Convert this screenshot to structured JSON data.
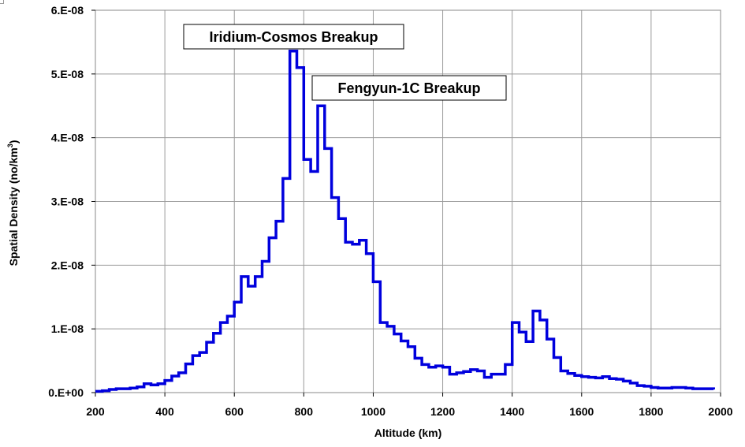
{
  "chart_data": {
    "type": "line",
    "step": true,
    "title": "",
    "xlabel": "Altitude (km)",
    "ylabel": {
      "prefix": "Spatial Density (no/km",
      "superscript": "3",
      "suffix": ")"
    },
    "xlim": [
      200,
      2000
    ],
    "ylim": [
      0,
      6e-08
    ],
    "xticks": [
      200,
      400,
      600,
      800,
      1000,
      1200,
      1400,
      1600,
      1800,
      2000
    ],
    "xtick_labels": [
      "200",
      "400",
      "600",
      "800",
      "1000",
      "1200",
      "1400",
      "1600",
      "1800",
      "2000"
    ],
    "yticks": [
      0,
      1e-08,
      2e-08,
      3e-08,
      4e-08,
      5e-08,
      6e-08
    ],
    "ytick_labels": [
      "0.E+00",
      "1.E-08",
      "2.E-08",
      "3.E-08",
      "4.E-08",
      "5.E-08",
      "6.E-08"
    ],
    "grid": true,
    "legend": "none",
    "series": [
      {
        "color": "#0000dd",
        "x": [
          200,
          220,
          240,
          260,
          280,
          300,
          320,
          340,
          360,
          380,
          400,
          420,
          440,
          460,
          480,
          500,
          520,
          540,
          560,
          580,
          600,
          620,
          640,
          660,
          680,
          700,
          720,
          740,
          760,
          780,
          800,
          820,
          840,
          860,
          880,
          900,
          920,
          940,
          960,
          980,
          1000,
          1020,
          1040,
          1060,
          1080,
          1100,
          1120,
          1140,
          1160,
          1180,
          1200,
          1220,
          1240,
          1260,
          1280,
          1300,
          1320,
          1340,
          1360,
          1380,
          1400,
          1420,
          1440,
          1460,
          1480,
          1500,
          1520,
          1540,
          1560,
          1580,
          1600,
          1620,
          1640,
          1660,
          1680,
          1700,
          1720,
          1740,
          1760,
          1780,
          1800,
          1820,
          1840,
          1860,
          1880,
          1900,
          1920,
          1940,
          1960,
          1980
        ],
        "y": [
          2e-10,
          3e-10,
          5e-10,
          6e-10,
          6e-10,
          7e-10,
          9e-10,
          1.4e-09,
          1.2e-09,
          1.4e-09,
          1.9e-09,
          2.6e-09,
          3.1e-09,
          4.5e-09,
          5.8e-09,
          6.3e-09,
          7.9e-09,
          9.3e-09,
          1.1e-08,
          1.2e-08,
          1.42e-08,
          1.82e-08,
          1.67e-08,
          1.82e-08,
          2.06e-08,
          2.43e-08,
          2.69e-08,
          3.36e-08,
          5.36e-08,
          5.1e-08,
          3.66e-08,
          3.47e-08,
          4.5e-08,
          3.83e-08,
          3.06e-08,
          2.73e-08,
          2.36e-08,
          2.33e-08,
          2.39e-08,
          2.18e-08,
          1.74e-08,
          1.1e-08,
          1.04e-08,
          9.2e-09,
          8.1e-09,
          7.2e-09,
          5.4e-09,
          4.4e-09,
          4e-09,
          4.2e-09,
          4e-09,
          2.9e-09,
          3.1e-09,
          3.3e-09,
          3.6e-09,
          3.4e-09,
          2.4e-09,
          2.9e-09,
          2.9e-09,
          4.4e-09,
          1.1e-08,
          9.5e-09,
          8e-09,
          1.28e-08,
          1.14e-08,
          8.4e-09,
          5.5e-09,
          3.4e-09,
          3e-09,
          2.7e-09,
          2.5e-09,
          2.4e-09,
          2.3e-09,
          2.5e-09,
          2.2e-09,
          2.1e-09,
          1.8e-09,
          1.5e-09,
          1.1e-09,
          1e-09,
          8e-10,
          7e-10,
          7e-10,
          8e-10,
          8e-10,
          7e-10,
          6e-10,
          6e-10,
          6e-10,
          5e-10
        ],
        "x_end": 1980
      }
    ],
    "annotations": [
      {
        "text": "Iridium-Cosmos Breakup",
        "x": 770,
        "y": 5.4e-08
      },
      {
        "text": "Fengyun-1C Breakup",
        "x": 850,
        "y": 4.5e-08
      }
    ]
  }
}
